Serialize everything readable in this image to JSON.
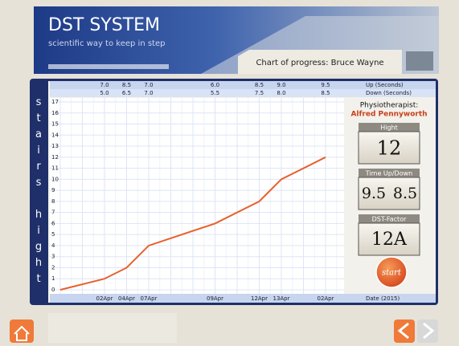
{
  "header": {
    "title": "DST SYSTEM",
    "subtitle": "scientific way to keep in step",
    "chart_caption": "Chart of progress: Bruce Wayne"
  },
  "side_panel": {
    "physio_label": "Physiotherapist:",
    "physio_name": "Alfred Pennyworth",
    "hight_label": "Hight",
    "hight_value": "12",
    "time_label": "Time Up/Down",
    "time_up": "9.5",
    "time_down": "8.5",
    "factor_label": "DST-Factor",
    "factor_value": "12A",
    "start_button": "start"
  },
  "chart_data": {
    "type": "line",
    "y_label": "stairs hight",
    "x_label": "Date (2015)",
    "categories": [
      null,
      "02Apr",
      "04Apr",
      "07Apr",
      "09Apr",
      "12Apr",
      "13Apr",
      "02Apr"
    ],
    "values": [
      0,
      1,
      2,
      4,
      6,
      8,
      10,
      12
    ],
    "color": "#e8602c",
    "ylim": [
      0,
      17
    ],
    "yticks": [
      0,
      1,
      2,
      3,
      4,
      5,
      6,
      7,
      8,
      9,
      10,
      11,
      12,
      13,
      14,
      15,
      16,
      17
    ],
    "grid": true,
    "up": {
      "name": "Up (Seconds)",
      "values": [
        null,
        "7.0",
        "8.5",
        "7.0",
        "6.0",
        "8.5",
        "9.0",
        "9.5"
      ]
    },
    "down": {
      "name": "Down (Seconds)",
      "values": [
        null,
        "5.0",
        "6.5",
        "7.0",
        "5.5",
        "7.5",
        "8.0",
        "8.5"
      ]
    }
  }
}
